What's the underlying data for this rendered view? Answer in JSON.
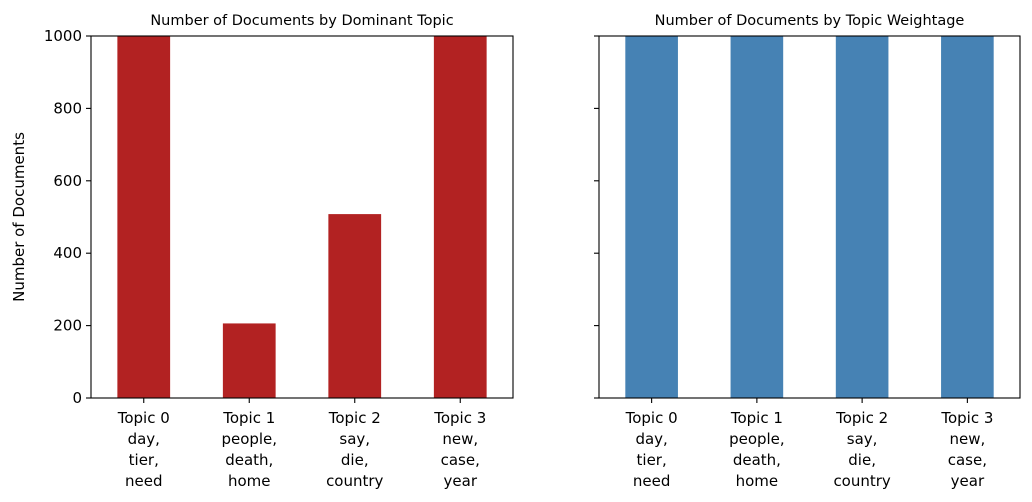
{
  "chart_data": [
    {
      "type": "bar",
      "title": "Number of Documents by Dominant Topic",
      "ylabel": "Number of Documents",
      "xlabel": "",
      "ylim": [
        0,
        1000
      ],
      "yticks": [
        0,
        200,
        400,
        600,
        800,
        1000
      ],
      "show_ytick_labels": true,
      "color": "#b22222",
      "categories": [
        [
          "Topic 0",
          "day,",
          "tier,",
          "need"
        ],
        [
          "Topic 1",
          "people,",
          "death,",
          "home"
        ],
        [
          "Topic 2",
          "say,",
          "die,",
          "country"
        ],
        [
          "Topic 3",
          "new,",
          "case,",
          "year"
        ]
      ],
      "values": [
        1000,
        206,
        508,
        1000
      ],
      "grid": false,
      "legend": "none"
    },
    {
      "type": "bar",
      "title": "Number of Documents by Topic Weightage",
      "ylabel": "",
      "xlabel": "",
      "ylim": [
        0,
        1000
      ],
      "yticks": [
        0,
        200,
        400,
        600,
        800,
        1000
      ],
      "show_ytick_labels": false,
      "color": "#4682b4",
      "categories": [
        [
          "Topic 0",
          "day,",
          "tier,",
          "need"
        ],
        [
          "Topic 1",
          "people,",
          "death,",
          "home"
        ],
        [
          "Topic 2",
          "say,",
          "die,",
          "country"
        ],
        [
          "Topic 3",
          "new,",
          "case,",
          "year"
        ]
      ],
      "values": [
        1000,
        1000,
        1000,
        1000
      ],
      "grid": false,
      "legend": "none"
    }
  ]
}
